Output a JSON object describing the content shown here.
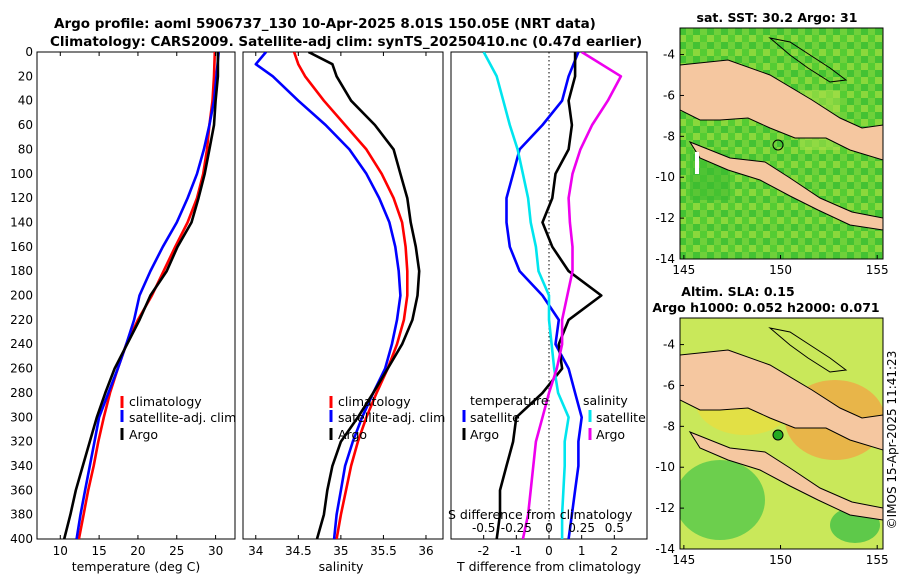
{
  "title": {
    "line1": "Argo profile: aoml 5906737_130 10-Apr-2025 8.01S 150.05E (NRT data)",
    "line2": "Climatology: CARS2009. Satellite-adj clim: synTS_20250410.nc (0.47d earlier)"
  },
  "colors": {
    "climatology": "#ff0000",
    "satellite": "#0000ff",
    "argo": "#000000",
    "salinity_satellite": "#00e5ee",
    "salinity_argo": "#ee00ee",
    "land": "#f5c7a0"
  },
  "depth_axis": {
    "ylim": [
      0,
      400
    ],
    "ticks": [
      "0",
      "20",
      "40",
      "60",
      "80",
      "100",
      "120",
      "140",
      "160",
      "180",
      "200",
      "220",
      "240",
      "260",
      "280",
      "300",
      "320",
      "340",
      "360",
      "380",
      "400"
    ]
  },
  "chart_data": [
    {
      "type": "line",
      "id": "temperature",
      "xlabel": "temperature (deg C)",
      "xlim": [
        7,
        32.5
      ],
      "xticks": [
        "10",
        "15",
        "20",
        "25",
        "30"
      ],
      "xtick_values": [
        10,
        15,
        20,
        25,
        30
      ],
      "legend": [
        "climatology",
        "satellite-adj. clim",
        "Argo"
      ],
      "series": [
        {
          "name": "climatology",
          "color": "#ff0000",
          "depth": [
            0,
            20,
            40,
            60,
            80,
            100,
            120,
            140,
            160,
            180,
            200,
            220,
            240,
            260,
            280,
            300,
            320,
            340,
            360,
            380,
            400
          ],
          "values": [
            29.9,
            29.8,
            29.6,
            29.2,
            28.9,
            28.4,
            27.6,
            26.4,
            24.8,
            23.3,
            21.8,
            20.0,
            18.5,
            17.4,
            16.4,
            15.6,
            14.9,
            14.3,
            13.6,
            13.0,
            12.4
          ]
        },
        {
          "name": "satellite-adj. clim",
          "color": "#0000ff",
          "depth": [
            0,
            20,
            40,
            60,
            80,
            100,
            120,
            140,
            160,
            180,
            200,
            220,
            240,
            260,
            280,
            300,
            320,
            340,
            360,
            380,
            400
          ],
          "values": [
            30.4,
            30.1,
            29.8,
            29.2,
            28.5,
            27.6,
            26.4,
            25.0,
            23.2,
            21.6,
            20.2,
            19.5,
            18.5,
            17.4,
            16.2,
            15.0,
            14.4,
            13.8,
            13.2,
            12.6,
            12.1
          ]
        },
        {
          "name": "Argo",
          "color": "#000000",
          "depth": [
            0,
            20,
            40,
            60,
            80,
            100,
            120,
            140,
            160,
            180,
            200,
            220,
            240,
            260,
            280,
            300,
            320,
            340,
            360,
            380,
            400
          ],
          "values": [
            30.3,
            30.3,
            30.0,
            29.8,
            29.2,
            28.6,
            27.8,
            26.9,
            25.1,
            23.7,
            21.6,
            20.2,
            18.6,
            17.0,
            15.8,
            14.7,
            13.8,
            12.9,
            12.0,
            11.3,
            10.5
          ]
        }
      ]
    },
    {
      "type": "line",
      "id": "salinity",
      "xlabel": "salinity",
      "xlim": [
        33.85,
        36.2
      ],
      "xticks": [
        "34",
        "34.5",
        "35",
        "35.5",
        "36"
      ],
      "xtick_values": [
        34,
        34.5,
        35,
        35.5,
        36
      ],
      "legend": [
        "climatology",
        "satellite-adj. clim",
        "Argo"
      ],
      "series": [
        {
          "name": "climatology",
          "color": "#ff0000",
          "depth": [
            0,
            10,
            20,
            40,
            60,
            80,
            100,
            120,
            140,
            160,
            180,
            200,
            220,
            240,
            260,
            280,
            300,
            320,
            340,
            360,
            380,
            400
          ],
          "values": [
            34.45,
            34.5,
            34.58,
            34.8,
            35.05,
            35.3,
            35.48,
            35.62,
            35.72,
            35.76,
            35.78,
            35.78,
            35.74,
            35.66,
            35.55,
            35.42,
            35.3,
            35.2,
            35.12,
            35.06,
            35.0,
            34.95
          ]
        },
        {
          "name": "satellite-adj. clim",
          "color": "#0000ff",
          "depth": [
            0,
            10,
            20,
            40,
            60,
            80,
            100,
            120,
            140,
            160,
            180,
            200,
            220,
            240,
            260,
            280,
            300,
            320,
            340,
            360,
            380,
            400
          ],
          "values": [
            34.12,
            34.0,
            34.2,
            34.5,
            34.82,
            35.1,
            35.3,
            35.45,
            35.57,
            35.64,
            35.68,
            35.7,
            35.66,
            35.6,
            35.52,
            35.38,
            35.25,
            35.14,
            35.05,
            35.0,
            34.95,
            34.92
          ]
        },
        {
          "name": "Argo",
          "color": "#000000",
          "depth": [
            0,
            10,
            20,
            40,
            60,
            80,
            100,
            120,
            140,
            160,
            180,
            200,
            220,
            240,
            260,
            280,
            300,
            320,
            340,
            360,
            380,
            400
          ],
          "values": [
            34.62,
            34.9,
            34.95,
            35.12,
            35.4,
            35.62,
            35.7,
            35.78,
            35.82,
            35.88,
            35.92,
            35.9,
            35.84,
            35.72,
            35.55,
            35.38,
            35.2,
            35.0,
            34.9,
            34.84,
            34.8,
            34.72
          ]
        }
      ]
    },
    {
      "type": "line",
      "id": "differences",
      "xlabel": "T difference from climatology",
      "xlabel_top": "S difference from climatology",
      "xlim": [
        -3,
        3
      ],
      "xticks": [
        "-2",
        "-1",
        "0",
        "1",
        "2"
      ],
      "xtick_values": [
        -2,
        -1,
        0,
        1,
        2
      ],
      "s_ticks": [
        "-0.5",
        "-0.25",
        "0",
        "0.25",
        "0.5"
      ],
      "s_tick_values": [
        -0.5,
        -0.25,
        0,
        0.25,
        0.5
      ],
      "legend_temperature": {
        "heading": "temperature",
        "items": [
          "satellite",
          "Argo"
        ]
      },
      "legend_salinity": {
        "heading": "salinity",
        "items": [
          "satellite",
          "Argo"
        ]
      },
      "series": [
        {
          "name": "temperature satellite",
          "axis": "T",
          "color": "#0000ff",
          "depth": [
            0,
            20,
            40,
            60,
            80,
            100,
            120,
            140,
            160,
            180,
            200,
            220,
            240,
            260,
            280,
            300,
            320,
            340,
            360,
            380,
            400
          ],
          "values": [
            0.9,
            0.6,
            0.4,
            -0.2,
            -0.9,
            -1.1,
            -1.3,
            -1.3,
            -1.2,
            -0.9,
            -0.2,
            0.3,
            0.2,
            0.6,
            0.8,
            1.0,
            0.9,
            0.9,
            0.8,
            0.7,
            0.6
          ]
        },
        {
          "name": "temperature Argo",
          "axis": "T",
          "color": "#000000",
          "depth": [
            0,
            20,
            40,
            60,
            80,
            100,
            120,
            140,
            160,
            180,
            200,
            220,
            240,
            260,
            280,
            300,
            320,
            340,
            360,
            380,
            400
          ],
          "values": [
            0.8,
            0.8,
            0.6,
            0.7,
            0.6,
            0.2,
            0.1,
            -0.2,
            0.1,
            0.6,
            1.6,
            0.6,
            0.3,
            0.4,
            -0.2,
            -1.0,
            -1.1,
            -1.3,
            -1.5,
            -1.5,
            -1.6
          ]
        },
        {
          "name": "salinity satellite",
          "axis": "S",
          "color": "#00e5ee",
          "depth": [
            0,
            20,
            40,
            60,
            80,
            100,
            120,
            140,
            160,
            180,
            200,
            220,
            240,
            260,
            280,
            300,
            320,
            340,
            360,
            380,
            400
          ],
          "values": [
            -0.5,
            -0.4,
            -0.35,
            -0.3,
            -0.24,
            -0.2,
            -0.16,
            -0.14,
            -0.1,
            -0.08,
            0.0,
            0.0,
            0.02,
            0.04,
            0.07,
            0.15,
            0.12,
            0.12,
            0.11,
            0.1,
            0.1
          ]
        },
        {
          "name": "salinity Argo",
          "axis": "S",
          "color": "#ee00ee",
          "depth": [
            0,
            20,
            40,
            60,
            80,
            100,
            120,
            140,
            160,
            180,
            200,
            220,
            240,
            260,
            280,
            300,
            320,
            340,
            360,
            380,
            400
          ],
          "values": [
            0.25,
            0.55,
            0.45,
            0.33,
            0.24,
            0.18,
            0.15,
            0.16,
            0.18,
            0.18,
            0.14,
            0.1,
            0.1,
            0.06,
            0.0,
            -0.05,
            -0.1,
            -0.12,
            -0.14,
            -0.16,
            -0.2
          ]
        }
      ]
    }
  ],
  "maps": [
    {
      "id": "sst",
      "title": "sat. SST: 30.2 Argo: 31",
      "xticks": [
        "145",
        "150",
        "155"
      ],
      "yticks": [
        "-4",
        "-6",
        "-8",
        "-10",
        "-12",
        "-14"
      ]
    },
    {
      "id": "sla",
      "title_line1": "Altim. SLA: 0.15",
      "title_line2": "Argo h1000: 0.052 h2000: 0.071",
      "xticks": [
        "145",
        "150",
        "155"
      ],
      "yticks": [
        "-4",
        "-6",
        "-8",
        "-10",
        "-12",
        "-14"
      ]
    }
  ],
  "watermark": "©IMOS 15-Apr-2025 11:41:23"
}
